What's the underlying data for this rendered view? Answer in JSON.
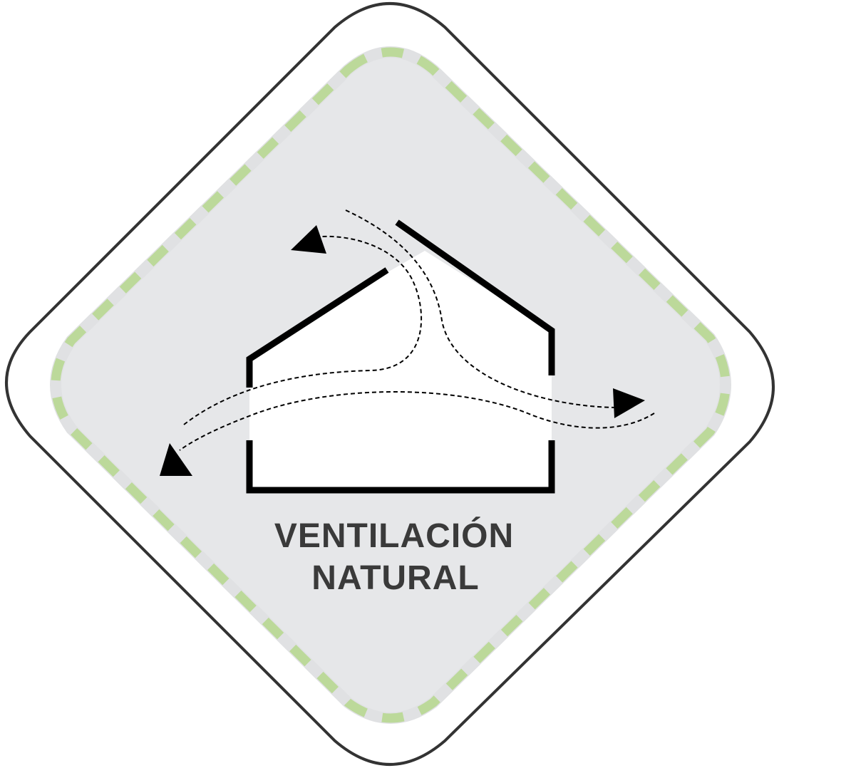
{
  "badge": {
    "label_line1": "VENTILACIÓN",
    "label_line2": "NATURAL"
  },
  "colors": {
    "outline": "#333333",
    "inner_fill": "#e6e7e9",
    "dash_accent": "#bcd99a",
    "house": "#000000",
    "text": "#3a3a3a",
    "house_interior": "#ffffff"
  },
  "icons": {
    "house": "house-icon",
    "airflow": "airflow-arrows-icon"
  }
}
